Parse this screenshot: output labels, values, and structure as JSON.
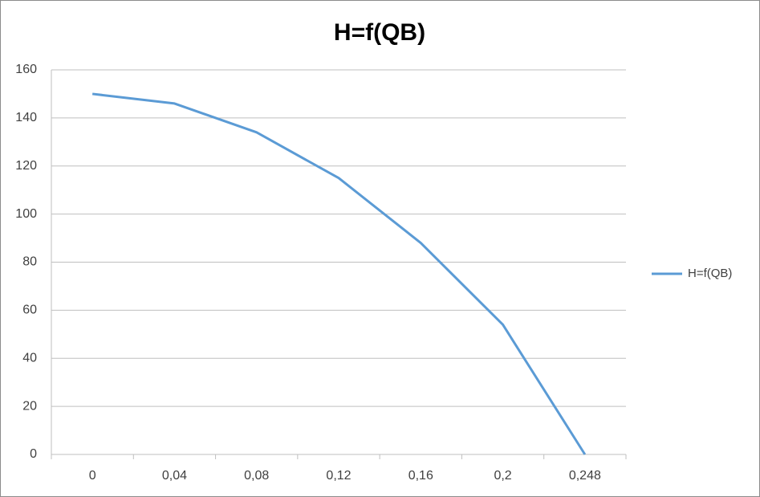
{
  "chart_data": {
    "type": "line",
    "title": "H=f(QB)",
    "categories": [
      "0",
      "0,04",
      "0,08",
      "0,12",
      "0,16",
      "0,2",
      "0,248"
    ],
    "series": [
      {
        "name": "H=f(QB)",
        "color": "#5b9bd5",
        "values": [
          150,
          146,
          134,
          115,
          88,
          54,
          0
        ]
      }
    ],
    "ylim": [
      0,
      160
    ],
    "yticks": [
      0,
      20,
      40,
      60,
      80,
      100,
      120,
      140,
      160
    ],
    "grid": true,
    "legend": "right"
  }
}
